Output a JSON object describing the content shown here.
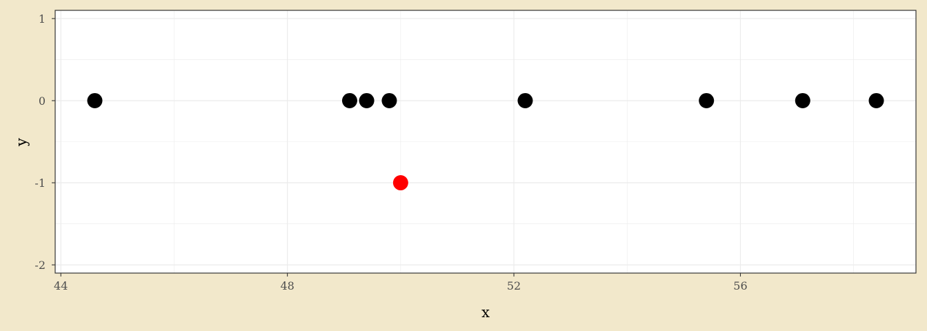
{
  "chart_data": {
    "type": "scatter",
    "title": "",
    "xlabel": "x",
    "ylabel": "y",
    "xlim": [
      43.9,
      59.1
    ],
    "ylim": [
      -2.1,
      1.1
    ],
    "x_ticks": [
      44,
      48,
      52,
      56
    ],
    "y_ticks": [
      1,
      0,
      -1,
      -2
    ],
    "grid": true,
    "colors": {
      "background": "#F2E8CB",
      "panel": "#FFFFFF",
      "grid": "#EBEBEB",
      "frame": "#333333"
    },
    "series": [
      {
        "color": "#000000",
        "points": [
          {
            "x": 44.6,
            "y": 0
          },
          {
            "x": 49.1,
            "y": 0
          },
          {
            "x": 49.4,
            "y": 0
          },
          {
            "x": 49.8,
            "y": 0
          },
          {
            "x": 52.2,
            "y": 0
          },
          {
            "x": 55.4,
            "y": 0
          },
          {
            "x": 57.1,
            "y": 0
          },
          {
            "x": 58.4,
            "y": 0
          }
        ]
      },
      {
        "color": "#FF0000",
        "points": [
          {
            "x": 50.0,
            "y": -1
          }
        ]
      }
    ]
  }
}
